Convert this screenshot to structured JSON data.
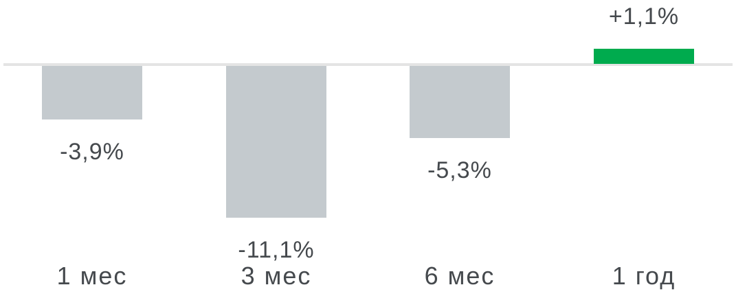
{
  "chart_data": {
    "type": "bar",
    "title": "",
    "xlabel": "",
    "ylabel": "",
    "categories": [
      "1 мес",
      "3 мес",
      "6 мес",
      "1 год"
    ],
    "values": [
      -3.9,
      -11.1,
      -5.3,
      1.1
    ],
    "bars": [
      {
        "category": "1 мес",
        "value": -3.9,
        "value_label": "-3,9%"
      },
      {
        "category": "3 мес",
        "value": -11.1,
        "value_label": "-11,1%"
      },
      {
        "category": "6 мес",
        "value": -5.3,
        "value_label": "-5,3%"
      },
      {
        "category": "1 год",
        "value": 1.1,
        "value_label": "+1,1%"
      }
    ],
    "colors": {
      "negative_bar": "#c4cace",
      "positive_bar": "#00ab4e",
      "baseline": "#e4e4e4",
      "label_text": "#45494d"
    },
    "layout_hints": {
      "grid": false,
      "legend": false,
      "zero_line": true,
      "value_label_position": "outside-end",
      "ylim": [
        -12,
        2
      ]
    }
  }
}
